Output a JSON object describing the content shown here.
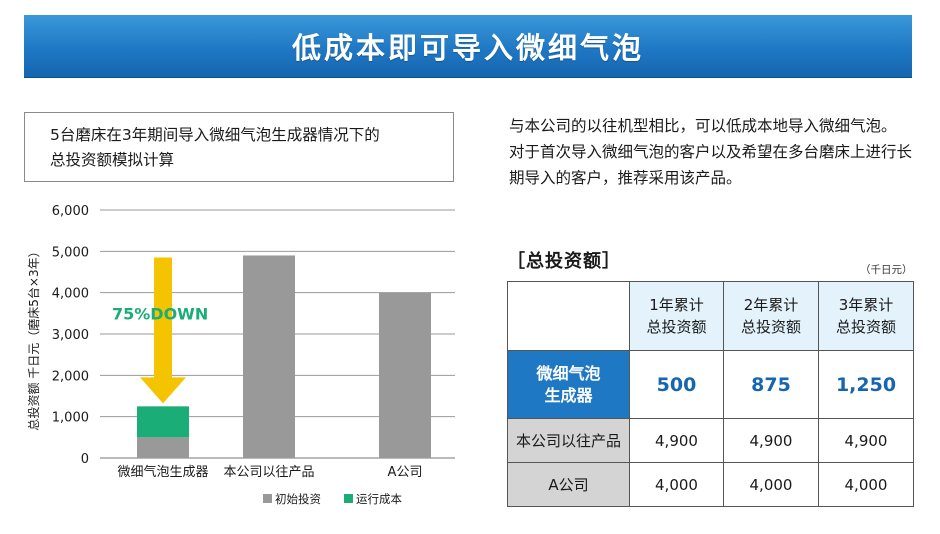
{
  "banner": {
    "title": "低成本即可导入微细气泡"
  },
  "chart_caption": {
    "line1": "5台磨床在3年期间导入微细气泡生成器情况下的",
    "line2": "总投资额模拟计算"
  },
  "chart_data": {
    "type": "bar",
    "stacked": true,
    "categories": [
      "微细气泡生成器",
      "本公司以往产品",
      "A公司"
    ],
    "series": [
      {
        "name": "初始投资",
        "values": [
          500,
          4900,
          4000
        ]
      },
      {
        "name": "运行成本",
        "values": [
          750,
          0,
          0
        ]
      }
    ],
    "ylabel": "总投资额  千日元（磨床5台×3年）",
    "ylim": [
      0,
      6000
    ],
    "yticks": [
      "0",
      "1,000",
      "2,000",
      "3,000",
      "4,000",
      "5,000",
      "6,000"
    ],
    "ytick_values": [
      0,
      1000,
      2000,
      3000,
      4000,
      5000,
      6000
    ],
    "annotation": "75%DOWN",
    "arrow_from": 4900,
    "arrow_to": 1250,
    "grid": true,
    "legend_placement": "bottom-right",
    "colors": {
      "initial": "#999999",
      "running": "#1aad78",
      "arrow": "#f5c400",
      "annotation": "#1aad78"
    }
  },
  "description": {
    "para1": "与本公司的以往机型相比，可以低成本地导入微细气泡。",
    "para2": "对于首次导入微细气泡的客户以及希望在多台磨床上进行长期导入的客户，推荐采用该产品。"
  },
  "table": {
    "heading": "［总投资额］",
    "unit": "（千日元）",
    "columns": [
      {
        "line1": "1年累计",
        "line2": "总投资额"
      },
      {
        "line1": "2年累计",
        "line2": "总投资额"
      },
      {
        "line1": "3年累计",
        "line2": "总投资额"
      }
    ],
    "rows": [
      {
        "label_line1": "微细气泡",
        "label_line2": "生成器",
        "values": [
          "500",
          "875",
          "1,250"
        ]
      },
      {
        "label": "本公司以往产品",
        "values": [
          "4,900",
          "4,900",
          "4,900"
        ]
      },
      {
        "label": "A公司",
        "values": [
          "4,000",
          "4,000",
          "4,000"
        ]
      }
    ]
  },
  "colors": {
    "brand_blue": "#1f78c4",
    "header_light": "#e3f2fb",
    "row_gray": "#d4d4d4"
  }
}
